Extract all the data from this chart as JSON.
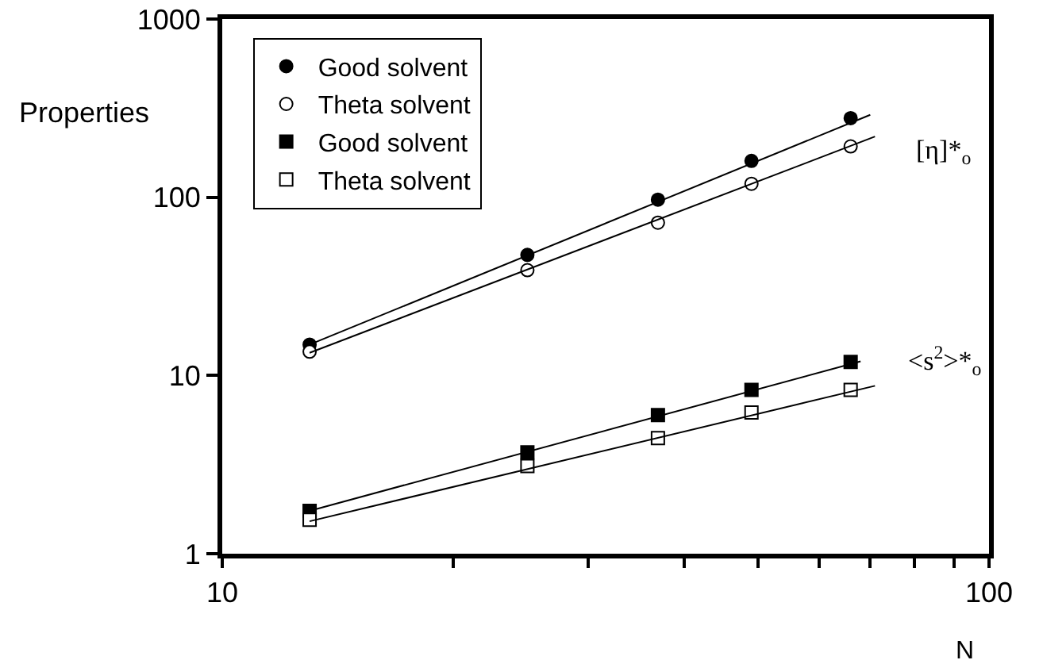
{
  "chart_data": {
    "type": "scatter",
    "xlabel": "N",
    "ylabel": "Properties",
    "log": "xy",
    "grid": false,
    "legend": "top left",
    "xlim": [
      10,
      100
    ],
    "xticks": [
      10,
      {
        "value": 20,
        "label": null
      },
      {
        "value": 30,
        "label": null
      },
      {
        "value": 40,
        "label": null
      },
      {
        "value": 50,
        "label": null
      },
      {
        "value": 60,
        "label": null
      },
      {
        "value": 70,
        "label": null
      },
      {
        "value": 80,
        "label": null
      },
      {
        "value": 90,
        "label": null
      },
      100
    ],
    "ylim": [
      1,
      1000
    ],
    "yticks": [
      1,
      10,
      100,
      1000
    ],
    "x": [
      13,
      25,
      37,
      49,
      66
    ],
    "series": [
      {
        "name": "Good solvent",
        "color": "#000000",
        "marker": "circle",
        "values": [
          14.9,
          47.5,
          97,
          160,
          278
        ]
      },
      {
        "name": "Theta solvent",
        "color": "#ffffff",
        "marker": "circle",
        "values": [
          13.6,
          39,
          72,
          119,
          193
        ]
      },
      {
        "name": "Good solvent",
        "color": "#000000",
        "marker": "square",
        "values": [
          1.74,
          3.7,
          6.0,
          8.3,
          11.9
        ]
      },
      {
        "name": "Theta solvent",
        "color": "#ffffff",
        "marker": "square",
        "values": [
          1.55,
          3.1,
          4.45,
          6.2,
          8.3
        ]
      },
      {
        "type": "line",
        "color": "#000000",
        "x": [
          13,
          70
        ],
        "values": [
          14.9,
          290
        ]
      },
      {
        "type": "line",
        "color": "#000000",
        "x": [
          13,
          71
        ],
        "values": [
          13.4,
          219
        ]
      },
      {
        "type": "line",
        "color": "#000000",
        "x": [
          13,
          68
        ],
        "values": [
          1.74,
          12
        ]
      },
      {
        "type": "line",
        "color": "#000000",
        "x": [
          13,
          71
        ],
        "values": [
          1.52,
          8.75
        ]
      }
    ],
    "annotations": [
      "[η]*$_{o}$",
      "<s$^{2}$>*$_{o}$"
    ]
  }
}
